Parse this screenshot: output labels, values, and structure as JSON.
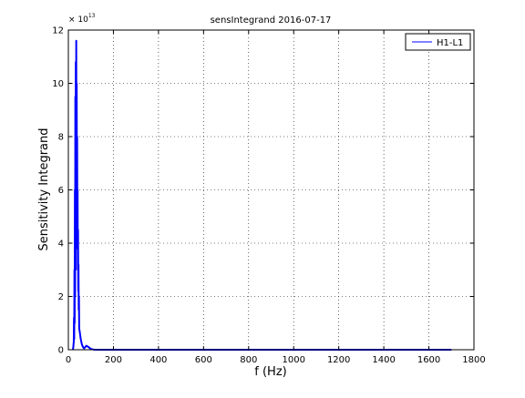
{
  "chart_data": {
    "type": "line",
    "title": "sensIntegrand 2016-07-17",
    "xlabel": "f (Hz)",
    "ylabel": "Sensitivity Integrand",
    "y_multiplier_base": "× 10",
    "y_multiplier_exponent": "13",
    "xlim": [
      0,
      1800
    ],
    "ylim": [
      0,
      12
    ],
    "grid": true,
    "grid_style": "dotted",
    "legend_position": "top-right",
    "x_ticks": [
      0,
      200,
      400,
      600,
      800,
      1000,
      1200,
      1400,
      1600,
      1800
    ],
    "x_tick_labels": [
      "0",
      "200",
      "400",
      "600",
      "800",
      "1000",
      "1200",
      "1400",
      "1600",
      "1800"
    ],
    "y_ticks": [
      0,
      2,
      4,
      6,
      8,
      10,
      12
    ],
    "y_tick_labels": [
      "0",
      "2",
      "4",
      "6",
      "8",
      "10",
      "12"
    ],
    "series": [
      {
        "name": "H1-L1",
        "color": "#0000ff",
        "x": [
          20,
          22,
          24,
          25,
          26,
          27,
          28,
          29,
          30,
          31,
          32,
          33,
          34,
          35,
          36,
          37,
          38,
          39,
          40,
          41,
          42,
          43,
          44,
          45,
          46,
          47,
          48,
          50,
          55,
          60,
          65,
          70,
          75,
          80,
          85,
          90,
          95,
          100,
          110,
          120,
          150,
          200,
          300,
          400,
          600,
          800,
          1000,
          1200,
          1400,
          1600,
          1700
        ],
        "y": [
          0,
          0.1,
          0.3,
          1.2,
          0.4,
          3.0,
          1.0,
          6.0,
          2.0,
          9.5,
          3.0,
          10.8,
          4.5,
          11.6,
          5.5,
          10.0,
          5.0,
          8.0,
          3.8,
          6.0,
          3.0,
          4.5,
          2.2,
          3.2,
          1.5,
          2.0,
          0.8,
          0.7,
          0.4,
          0.2,
          0.1,
          0.05,
          0.1,
          0.15,
          0.12,
          0.1,
          0.06,
          0.03,
          0.01,
          0.0,
          0.0,
          0.0,
          0.0,
          0.0,
          0.0,
          0.0,
          0.0,
          0.0,
          0.0,
          0.0,
          0.0
        ]
      }
    ]
  }
}
